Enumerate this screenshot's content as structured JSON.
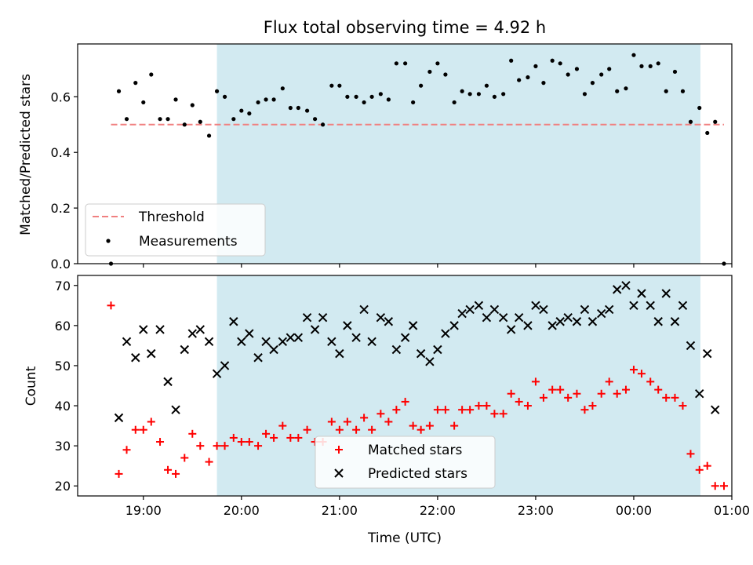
{
  "chart_data": {
    "title": "Flux total observing time = 4.92 h",
    "xlabel": "Time (UTC)",
    "x_tick_labels": [
      "19:00",
      "20:00",
      "21:00",
      "22:00",
      "23:00",
      "00:00",
      "01:00"
    ],
    "x_ticks_hours": [
      19,
      20,
      21,
      22,
      23,
      24,
      25
    ],
    "xlim_hours": [
      18.33,
      25.0
    ],
    "shaded_region_hours": [
      19.75,
      24.68
    ],
    "shade_color": "#add8e6",
    "panels": [
      {
        "type": "scatter",
        "ylabel": "Matched/Predicted stars",
        "ylim": [
          0,
          0.79
        ],
        "yticks": [
          0.0,
          0.2,
          0.4,
          0.6
        ],
        "ytick_labels": [
          "0.0",
          "0.2",
          "0.4",
          "0.6"
        ],
        "legend_position": "lower-left",
        "threshold": {
          "name": "Threshold",
          "value": 0.5,
          "x_range": [
            18.67,
            24.92
          ],
          "color": "#f08080"
        },
        "series": [
          {
            "name": "Measurements",
            "color": "#000000",
            "points": [
              [
                18.67,
                0.0
              ],
              [
                18.75,
                0.62
              ],
              [
                18.83,
                0.52
              ],
              [
                18.92,
                0.65
              ],
              [
                19.0,
                0.58
              ],
              [
                19.08,
                0.68
              ],
              [
                19.17,
                0.52
              ],
              [
                19.25,
                0.52
              ],
              [
                19.33,
                0.59
              ],
              [
                19.42,
                0.5
              ],
              [
                19.5,
                0.57
              ],
              [
                19.58,
                0.51
              ],
              [
                19.67,
                0.46
              ],
              [
                19.75,
                0.62
              ],
              [
                19.83,
                0.6
              ],
              [
                19.92,
                0.52
              ],
              [
                20.0,
                0.55
              ],
              [
                20.08,
                0.54
              ],
              [
                20.17,
                0.58
              ],
              [
                20.25,
                0.59
              ],
              [
                20.33,
                0.59
              ],
              [
                20.42,
                0.63
              ],
              [
                20.5,
                0.56
              ],
              [
                20.58,
                0.56
              ],
              [
                20.67,
                0.55
              ],
              [
                20.75,
                0.52
              ],
              [
                20.83,
                0.5
              ],
              [
                20.92,
                0.64
              ],
              [
                21.0,
                0.64
              ],
              [
                21.08,
                0.6
              ],
              [
                21.17,
                0.6
              ],
              [
                21.25,
                0.58
              ],
              [
                21.33,
                0.6
              ],
              [
                21.42,
                0.61
              ],
              [
                21.5,
                0.59
              ],
              [
                21.58,
                0.72
              ],
              [
                21.67,
                0.72
              ],
              [
                21.75,
                0.58
              ],
              [
                21.83,
                0.64
              ],
              [
                21.92,
                0.69
              ],
              [
                22.0,
                0.72
              ],
              [
                22.08,
                0.68
              ],
              [
                22.17,
                0.58
              ],
              [
                22.25,
                0.62
              ],
              [
                22.33,
                0.61
              ],
              [
                22.42,
                0.61
              ],
              [
                22.5,
                0.64
              ],
              [
                22.58,
                0.6
              ],
              [
                22.67,
                0.61
              ],
              [
                22.75,
                0.73
              ],
              [
                22.83,
                0.66
              ],
              [
                22.92,
                0.67
              ],
              [
                23.0,
                0.71
              ],
              [
                23.08,
                0.65
              ],
              [
                23.17,
                0.73
              ],
              [
                23.25,
                0.72
              ],
              [
                23.33,
                0.68
              ],
              [
                23.42,
                0.7
              ],
              [
                23.5,
                0.61
              ],
              [
                23.58,
                0.65
              ],
              [
                23.67,
                0.68
              ],
              [
                23.75,
                0.7
              ],
              [
                23.83,
                0.62
              ],
              [
                23.92,
                0.63
              ],
              [
                24.0,
                0.75
              ],
              [
                24.08,
                0.71
              ],
              [
                24.17,
                0.71
              ],
              [
                24.25,
                0.72
              ],
              [
                24.33,
                0.62
              ],
              [
                24.42,
                0.69
              ],
              [
                24.5,
                0.62
              ],
              [
                24.58,
                0.51
              ],
              [
                24.67,
                0.56
              ],
              [
                24.75,
                0.47
              ],
              [
                24.83,
                0.51
              ],
              [
                24.92,
                0.0
              ]
            ]
          }
        ]
      },
      {
        "type": "scatter",
        "ylabel": "Count",
        "ylim": [
          17.5,
          72.5
        ],
        "yticks": [
          20,
          30,
          40,
          50,
          60,
          70
        ],
        "ytick_labels": [
          "20",
          "30",
          "40",
          "50",
          "60",
          "70"
        ],
        "legend_position": "lower-center",
        "series": [
          {
            "name": "Matched stars",
            "marker": "+",
            "color": "#ff0000",
            "points": [
              [
                18.67,
                65
              ],
              [
                18.75,
                23
              ],
              [
                18.83,
                29
              ],
              [
                18.92,
                34
              ],
              [
                19.0,
                34
              ],
              [
                19.08,
                36
              ],
              [
                19.17,
                31
              ],
              [
                19.25,
                24
              ],
              [
                19.33,
                23
              ],
              [
                19.42,
                27
              ],
              [
                19.5,
                33
              ],
              [
                19.58,
                30
              ],
              [
                19.67,
                26
              ],
              [
                19.75,
                30
              ],
              [
                19.83,
                30
              ],
              [
                19.92,
                32
              ],
              [
                20.0,
                31
              ],
              [
                20.08,
                31
              ],
              [
                20.17,
                30
              ],
              [
                20.25,
                33
              ],
              [
                20.33,
                32
              ],
              [
                20.42,
                35
              ],
              [
                20.5,
                32
              ],
              [
                20.58,
                32
              ],
              [
                20.67,
                34
              ],
              [
                20.75,
                31
              ],
              [
                20.83,
                31
              ],
              [
                20.92,
                36
              ],
              [
                21.0,
                34
              ],
              [
                21.08,
                36
              ],
              [
                21.17,
                34
              ],
              [
                21.25,
                37
              ],
              [
                21.33,
                34
              ],
              [
                21.42,
                38
              ],
              [
                21.5,
                36
              ],
              [
                21.58,
                39
              ],
              [
                21.67,
                41
              ],
              [
                21.75,
                35
              ],
              [
                21.83,
                34
              ],
              [
                21.92,
                35
              ],
              [
                22.0,
                39
              ],
              [
                22.08,
                39
              ],
              [
                22.17,
                35
              ],
              [
                22.25,
                39
              ],
              [
                22.33,
                39
              ],
              [
                22.42,
                40
              ],
              [
                22.5,
                40
              ],
              [
                22.58,
                38
              ],
              [
                22.67,
                38
              ],
              [
                22.75,
                43
              ],
              [
                22.83,
                41
              ],
              [
                22.92,
                40
              ],
              [
                23.0,
                46
              ],
              [
                23.08,
                42
              ],
              [
                23.17,
                44
              ],
              [
                23.25,
                44
              ],
              [
                23.33,
                42
              ],
              [
                23.42,
                43
              ],
              [
                23.5,
                39
              ],
              [
                23.58,
                40
              ],
              [
                23.67,
                43
              ],
              [
                23.75,
                46
              ],
              [
                23.83,
                43
              ],
              [
                23.92,
                44
              ],
              [
                24.0,
                49
              ],
              [
                24.08,
                48
              ],
              [
                24.17,
                46
              ],
              [
                24.25,
                44
              ],
              [
                24.33,
                42
              ],
              [
                24.42,
                42
              ],
              [
                24.5,
                40
              ],
              [
                24.58,
                28
              ],
              [
                24.67,
                24
              ],
              [
                24.75,
                25
              ],
              [
                24.83,
                20
              ],
              [
                24.92,
                20
              ]
            ]
          },
          {
            "name": "Predicted stars",
            "marker": "x",
            "color": "#000000",
            "points": [
              [
                18.75,
                37
              ],
              [
                18.83,
                56
              ],
              [
                18.92,
                52
              ],
              [
                19.0,
                59
              ],
              [
                19.08,
                53
              ],
              [
                19.17,
                59
              ],
              [
                19.25,
                46
              ],
              [
                19.33,
                39
              ],
              [
                19.42,
                54
              ],
              [
                19.5,
                58
              ],
              [
                19.58,
                59
              ],
              [
                19.67,
                56
              ],
              [
                19.75,
                48
              ],
              [
                19.83,
                50
              ],
              [
                19.92,
                61
              ],
              [
                20.0,
                56
              ],
              [
                20.08,
                58
              ],
              [
                20.17,
                52
              ],
              [
                20.25,
                56
              ],
              [
                20.33,
                54
              ],
              [
                20.42,
                56
              ],
              [
                20.5,
                57
              ],
              [
                20.58,
                57
              ],
              [
                20.67,
                62
              ],
              [
                20.75,
                59
              ],
              [
                20.83,
                62
              ],
              [
                20.92,
                56
              ],
              [
                21.0,
                53
              ],
              [
                21.08,
                60
              ],
              [
                21.17,
                57
              ],
              [
                21.25,
                64
              ],
              [
                21.33,
                56
              ],
              [
                21.42,
                62
              ],
              [
                21.5,
                61
              ],
              [
                21.58,
                54
              ],
              [
                21.67,
                57
              ],
              [
                21.75,
                60
              ],
              [
                21.83,
                53
              ],
              [
                21.92,
                51
              ],
              [
                22.0,
                54
              ],
              [
                22.08,
                58
              ],
              [
                22.17,
                60
              ],
              [
                22.25,
                63
              ],
              [
                22.33,
                64
              ],
              [
                22.42,
                65
              ],
              [
                22.5,
                62
              ],
              [
                22.58,
                64
              ],
              [
                22.67,
                62
              ],
              [
                22.75,
                59
              ],
              [
                22.83,
                62
              ],
              [
                22.92,
                60
              ],
              [
                23.0,
                65
              ],
              [
                23.08,
                64
              ],
              [
                23.17,
                60
              ],
              [
                23.25,
                61
              ],
              [
                23.33,
                62
              ],
              [
                23.42,
                61
              ],
              [
                23.5,
                64
              ],
              [
                23.58,
                61
              ],
              [
                23.67,
                63
              ],
              [
                23.75,
                64
              ],
              [
                23.83,
                69
              ],
              [
                23.92,
                70
              ],
              [
                24.0,
                65
              ],
              [
                24.08,
                68
              ],
              [
                24.17,
                65
              ],
              [
                24.25,
                61
              ],
              [
                24.33,
                68
              ],
              [
                24.42,
                61
              ],
              [
                24.5,
                65
              ],
              [
                24.58,
                55
              ],
              [
                24.67,
                43
              ],
              [
                24.75,
                53
              ],
              [
                24.83,
                39
              ]
            ]
          }
        ]
      }
    ]
  }
}
